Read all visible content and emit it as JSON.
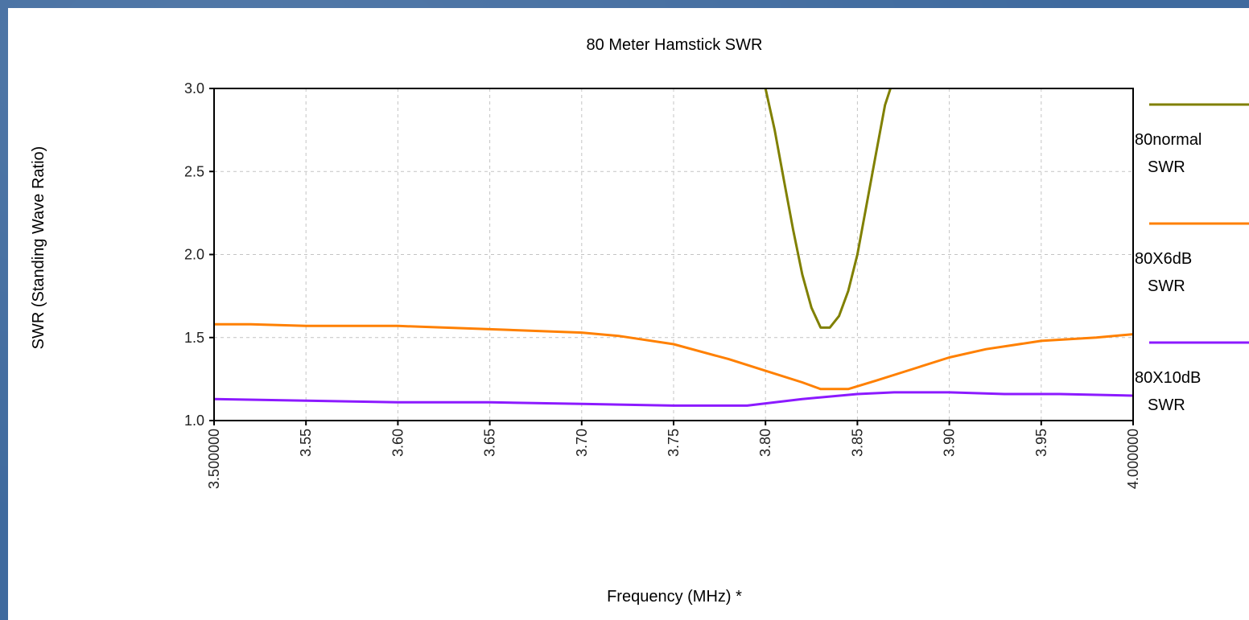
{
  "chart_data": {
    "type": "line",
    "title": "80 Meter Hamstick SWR",
    "xlabel": "Frequency (MHz) *",
    "ylabel": "SWR  (Standing Wave Ratio)",
    "xlim": [
      3.5,
      4.0
    ],
    "ylim": [
      1.0,
      3.0
    ],
    "grid": true,
    "legend_position": "right",
    "x_ticks": [
      {
        "value": 3.5,
        "label": "3.500000"
      },
      {
        "value": 3.55,
        "label": "3.55"
      },
      {
        "value": 3.6,
        "label": "3.60"
      },
      {
        "value": 3.65,
        "label": "3.65"
      },
      {
        "value": 3.7,
        "label": "3.70"
      },
      {
        "value": 3.75,
        "label": "3.75"
      },
      {
        "value": 3.8,
        "label": "3.80"
      },
      {
        "value": 3.85,
        "label": "3.85"
      },
      {
        "value": 3.9,
        "label": "3.90"
      },
      {
        "value": 3.95,
        "label": "3.95"
      },
      {
        "value": 4.0,
        "label": "4.000000"
      }
    ],
    "y_ticks": [
      {
        "value": 1.0,
        "label": "1.0"
      },
      {
        "value": 1.5,
        "label": "1.5"
      },
      {
        "value": 2.0,
        "label": "2.0"
      },
      {
        "value": 2.5,
        "label": "2.5"
      },
      {
        "value": 3.0,
        "label": "3.0"
      }
    ],
    "series": [
      {
        "name": "80normal SWR",
        "legend_lines": [
          "80normal",
          "SWR"
        ],
        "color": "#808000",
        "x": [
          3.8,
          3.805,
          3.81,
          3.815,
          3.82,
          3.825,
          3.83,
          3.835,
          3.84,
          3.845,
          3.85,
          3.855,
          3.86,
          3.865,
          3.868
        ],
        "y": [
          3.0,
          2.75,
          2.45,
          2.15,
          1.88,
          1.68,
          1.56,
          1.56,
          1.63,
          1.78,
          2.0,
          2.3,
          2.6,
          2.9,
          3.0
        ]
      },
      {
        "name": "80X6dB SWR",
        "legend_lines": [
          "80X6dB",
          "SWR"
        ],
        "color": "#ff8000",
        "x": [
          3.5,
          3.52,
          3.55,
          3.6,
          3.65,
          3.7,
          3.72,
          3.75,
          3.78,
          3.8,
          3.82,
          3.83,
          3.845,
          3.86,
          3.88,
          3.9,
          3.92,
          3.95,
          3.98,
          4.0
        ],
        "y": [
          1.58,
          1.58,
          1.57,
          1.57,
          1.55,
          1.53,
          1.51,
          1.46,
          1.37,
          1.3,
          1.23,
          1.19,
          1.19,
          1.24,
          1.31,
          1.38,
          1.43,
          1.48,
          1.5,
          1.52
        ]
      },
      {
        "name": "80X10dB SWR",
        "legend_lines": [
          "80X10dB",
          "SWR"
        ],
        "color": "#8c1aff",
        "x": [
          3.5,
          3.55,
          3.6,
          3.65,
          3.7,
          3.75,
          3.79,
          3.82,
          3.85,
          3.87,
          3.9,
          3.93,
          3.96,
          4.0
        ],
        "y": [
          1.13,
          1.12,
          1.11,
          1.11,
          1.1,
          1.09,
          1.09,
          1.13,
          1.16,
          1.17,
          1.17,
          1.16,
          1.16,
          1.15
        ]
      }
    ]
  }
}
